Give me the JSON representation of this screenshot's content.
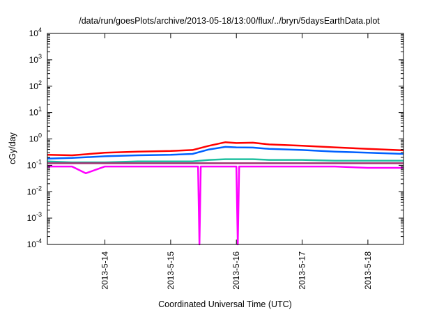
{
  "chart_data": {
    "type": "line",
    "title": "/data/run/goesPlots/archive/2013-05-18/13:00/flux/../bryn/5daysEarthData.plot",
    "xlabel": "Coordinated Universal Time (UTC)",
    "ylabel": "cGy/day",
    "yscale": "log",
    "ylim": [
      0.0001,
      10000
    ],
    "xlim": [
      "2013-05-13 03:00",
      "2013-05-18 13:00"
    ],
    "yticks": [
      {
        "base": "10",
        "exp": "-4"
      },
      {
        "base": "10",
        "exp": "-3"
      },
      {
        "base": "10",
        "exp": "-2"
      },
      {
        "base": "10",
        "exp": "-1"
      },
      {
        "base": "10",
        "exp": "0"
      },
      {
        "base": "10",
        "exp": "1"
      },
      {
        "base": "10",
        "exp": "2"
      },
      {
        "base": "10",
        "exp": "3"
      },
      {
        "base": "10",
        "exp": "4"
      }
    ],
    "xticks": [
      {
        "label": "2013-5-14",
        "time": "2013-05-14 00:00"
      },
      {
        "label": "2013-5-15",
        "time": "2013-05-15 00:00"
      },
      {
        "label": "2013-5-16",
        "time": "2013-05-16 00:00"
      },
      {
        "label": "2013-5-17",
        "time": "2013-05-17 00:00"
      },
      {
        "label": "2013-5-18",
        "time": "2013-05-18 00:00"
      }
    ],
    "grid": false,
    "legend": "none",
    "series": [
      {
        "color": "#ff0000",
        "x": [
          "2013-05-13 03:00",
          "2013-05-13 12:00",
          "2013-05-14 00:00",
          "2013-05-14 12:00",
          "2013-05-15 00:00",
          "2013-05-15 08:00",
          "2013-05-15 14:00",
          "2013-05-15 20:00",
          "2013-05-16 00:00",
          "2013-05-16 06:00",
          "2013-05-16 12:00",
          "2013-05-17 00:00",
          "2013-05-17 12:00",
          "2013-05-18 00:00",
          "2013-05-18 13:00"
        ],
        "values": [
          0.25,
          0.24,
          0.3,
          0.33,
          0.35,
          0.38,
          0.55,
          0.75,
          0.7,
          0.72,
          0.62,
          0.55,
          0.48,
          0.42,
          0.37
        ]
      },
      {
        "color": "#0060ff",
        "x": [
          "2013-05-13 03:00",
          "2013-05-13 12:00",
          "2013-05-14 00:00",
          "2013-05-14 12:00",
          "2013-05-15 00:00",
          "2013-05-15 08:00",
          "2013-05-15 14:00",
          "2013-05-15 20:00",
          "2013-05-16 00:00",
          "2013-05-16 06:00",
          "2013-05-16 12:00",
          "2013-05-17 00:00",
          "2013-05-17 12:00",
          "2013-05-18 00:00",
          "2013-05-18 13:00"
        ],
        "values": [
          0.18,
          0.19,
          0.22,
          0.24,
          0.25,
          0.27,
          0.4,
          0.5,
          0.48,
          0.47,
          0.42,
          0.38,
          0.33,
          0.3,
          0.27
        ]
      },
      {
        "color": "#20c0a0",
        "x": [
          "2013-05-13 03:00",
          "2013-05-13 12:00",
          "2013-05-14 00:00",
          "2013-05-14 12:00",
          "2013-05-15 00:00",
          "2013-05-15 08:00",
          "2013-05-15 14:00",
          "2013-05-15 20:00",
          "2013-05-16 00:00",
          "2013-05-16 06:00",
          "2013-05-16 12:00",
          "2013-05-17 00:00",
          "2013-05-17 12:00",
          "2013-05-18 00:00",
          "2013-05-18 13:00"
        ],
        "values": [
          0.14,
          0.13,
          0.13,
          0.14,
          0.14,
          0.14,
          0.16,
          0.17,
          0.17,
          0.17,
          0.16,
          0.16,
          0.15,
          0.15,
          0.15
        ]
      },
      {
        "color": "#a03070",
        "x": [
          "2013-05-13 03:00",
          "2013-05-13 12:00",
          "2013-05-14 00:00",
          "2013-05-14 12:00",
          "2013-05-15 00:00",
          "2013-05-15 08:00",
          "2013-05-15 14:00",
          "2013-05-15 20:00",
          "2013-05-16 00:00",
          "2013-05-16 06:00",
          "2013-05-16 12:00",
          "2013-05-17 00:00",
          "2013-05-17 12:00",
          "2013-05-18 00:00",
          "2013-05-18 13:00"
        ],
        "values": [
          0.12,
          0.12,
          0.12,
          0.12,
          0.12,
          0.12,
          0.12,
          0.12,
          0.12,
          0.12,
          0.12,
          0.12,
          0.12,
          0.12,
          0.12
        ]
      },
      {
        "color": "#ff00ff",
        "x": [
          "2013-05-13 03:00",
          "2013-05-13 12:00",
          "2013-05-13 17:00",
          "2013-05-14 00:00",
          "2013-05-14 12:00",
          "2013-05-15 00:00",
          "2013-05-15 10:00",
          "2013-05-15 10:30",
          "2013-05-15 11:00",
          "2013-05-15 18:00",
          "2013-05-16 00:00",
          "2013-05-16 00:30",
          "2013-05-16 01:00",
          "2013-05-16 12:00",
          "2013-05-17 00:00",
          "2013-05-17 12:00",
          "2013-05-18 00:00",
          "2013-05-18 13:00"
        ],
        "values": [
          0.09,
          0.09,
          0.05,
          0.09,
          0.09,
          0.09,
          0.09,
          0.0001,
          0.09,
          0.09,
          0.09,
          0.0001,
          0.09,
          0.09,
          0.09,
          0.09,
          0.08,
          0.08
        ]
      }
    ]
  }
}
